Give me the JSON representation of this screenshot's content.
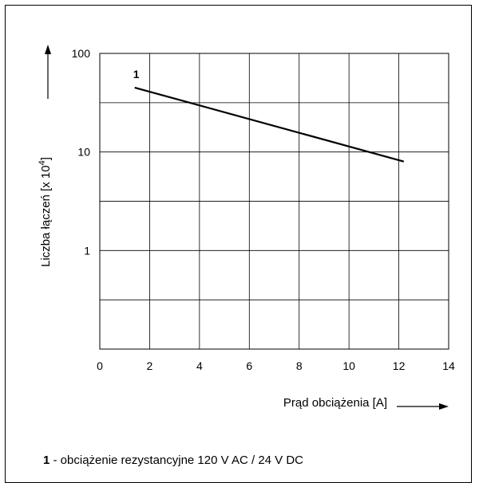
{
  "chart_data": {
    "type": "line",
    "x_axis": {
      "label": "Prąd obciążenia [A]",
      "range": [
        0,
        14
      ],
      "ticks": [
        0,
        2,
        4,
        6,
        8,
        10,
        12,
        14
      ]
    },
    "y_axis": {
      "label": "Liczba łączeń [x 10",
      "label_superscript": "4",
      "label_suffix": "]",
      "scale": "log",
      "range": [
        0.1,
        100
      ],
      "ticks": [
        {
          "value": 1,
          "label": "1"
        },
        {
          "value": 10,
          "label": "10"
        },
        {
          "value": 100,
          "label": "100"
        }
      ],
      "minor_gridlines": [
        0.316,
        3.16,
        31.6
      ]
    },
    "grid": true,
    "series": [
      {
        "name": "1",
        "color": "#000000",
        "points": [
          {
            "x": 1.4,
            "y": 45
          },
          {
            "x": 12.2,
            "y": 8
          }
        ]
      }
    ]
  },
  "legend": {
    "key": "1",
    "text": " - obciążenie rezystancyjne 120 V AC / 24 V DC"
  }
}
